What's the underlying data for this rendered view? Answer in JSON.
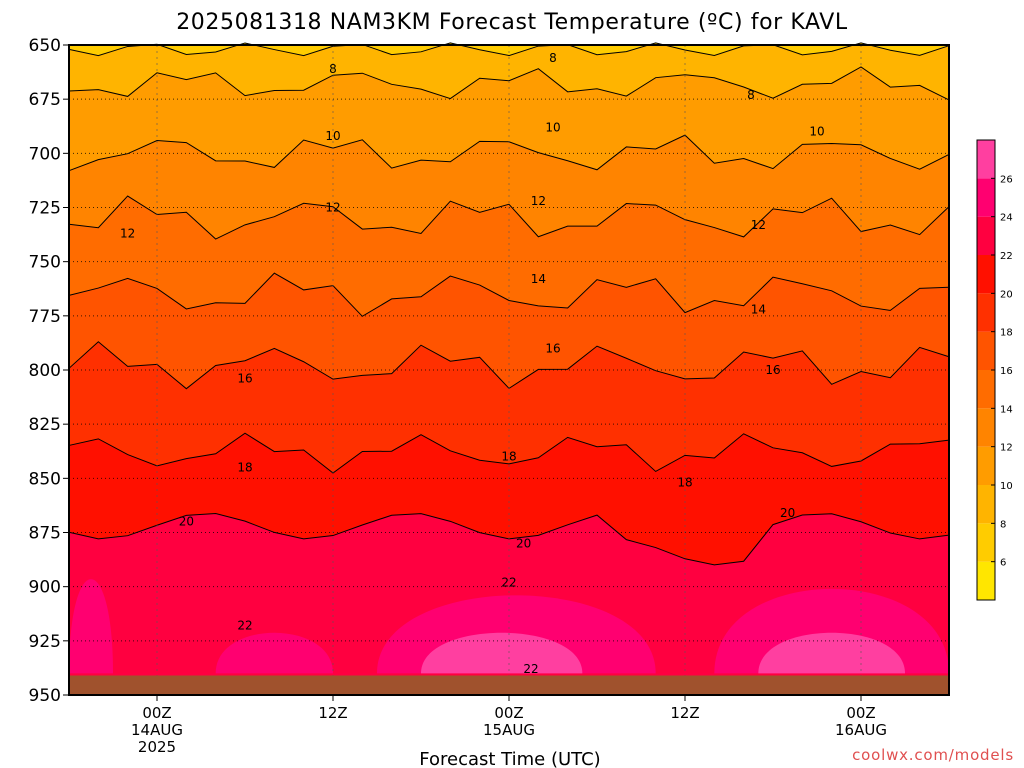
{
  "chart_data": {
    "type": "heatmap",
    "title": "2025081318 NAM3KM Forecast Temperature (ºC) for KAVL",
    "xlabel": "Forecast Time (UTC)",
    "ylabel": "",
    "credit": "coolwx.com/models",
    "y_axis": {
      "ticks": [
        "650",
        "675",
        "700",
        "725",
        "750",
        "775",
        "800",
        "825",
        "850",
        "875",
        "900",
        "925",
        "950"
      ],
      "range": [
        650,
        950
      ],
      "inverted": true
    },
    "x_axis": {
      "ticks": [
        {
          "label": "00Z",
          "date": "14AUG",
          "year": "2025",
          "hours": 6
        },
        {
          "label": "12Z",
          "date": "",
          "year": "",
          "hours": 18
        },
        {
          "label": "00Z",
          "date": "15AUG",
          "year": "",
          "hours": 30
        },
        {
          "label": "12Z",
          "date": "",
          "year": "",
          "hours": 42
        },
        {
          "label": "00Z",
          "date": "16AUG",
          "year": "",
          "hours": 54
        }
      ],
      "range_hours": [
        0,
        60
      ]
    },
    "colorbar": {
      "ticks": [
        "6",
        "8",
        "10",
        "12",
        "14",
        "16",
        "18",
        "20",
        "22",
        "24",
        "26"
      ],
      "levels": [
        4,
        6,
        8,
        10,
        12,
        14,
        16,
        18,
        20,
        22,
        24,
        26,
        28
      ],
      "colors": [
        "#ffe600",
        "#ffcc00",
        "#ffb400",
        "#ff9c00",
        "#ff8400",
        "#ff6c00",
        "#ff5400",
        "#ff3000",
        "#ff1000",
        "#ff0040",
        "#ff0070",
        "#ff3fa0"
      ]
    },
    "ground_color": "#a0522d",
    "contour_labels": [
      {
        "text": "8",
        "hours": 18.0,
        "p": 661
      },
      {
        "text": "8",
        "hours": 33.0,
        "p": 656
      },
      {
        "text": "8",
        "hours": 46.5,
        "p": 673
      },
      {
        "text": "10",
        "hours": 18.0,
        "p": 692
      },
      {
        "text": "10",
        "hours": 33.0,
        "p": 688
      },
      {
        "text": "10",
        "hours": 51.0,
        "p": 690
      },
      {
        "text": "12",
        "hours": 4.0,
        "p": 737
      },
      {
        "text": "12",
        "hours": 18.0,
        "p": 725
      },
      {
        "text": "12",
        "hours": 32.0,
        "p": 722
      },
      {
        "text": "12",
        "hours": 47.0,
        "p": 733
      },
      {
        "text": "14",
        "hours": 32.0,
        "p": 758
      },
      {
        "text": "14",
        "hours": 47.0,
        "p": 772
      },
      {
        "text": "16",
        "hours": 12.0,
        "p": 804
      },
      {
        "text": "16",
        "hours": 33.0,
        "p": 790
      },
      {
        "text": "16",
        "hours": 48.0,
        "p": 800
      },
      {
        "text": "18",
        "hours": 12.0,
        "p": 845
      },
      {
        "text": "18",
        "hours": 30.0,
        "p": 840
      },
      {
        "text": "18",
        "hours": 42.0,
        "p": 852
      },
      {
        "text": "20",
        "hours": 8.0,
        "p": 870
      },
      {
        "text": "20",
        "hours": 31.0,
        "p": 880
      },
      {
        "text": "20",
        "hours": 49.0,
        "p": 866
      },
      {
        "text": "22",
        "hours": 12.0,
        "p": 918
      },
      {
        "text": "22",
        "hours": 30.0,
        "p": 898
      },
      {
        "text": "22",
        "hours": 31.5,
        "p": 938
      }
    ]
  }
}
